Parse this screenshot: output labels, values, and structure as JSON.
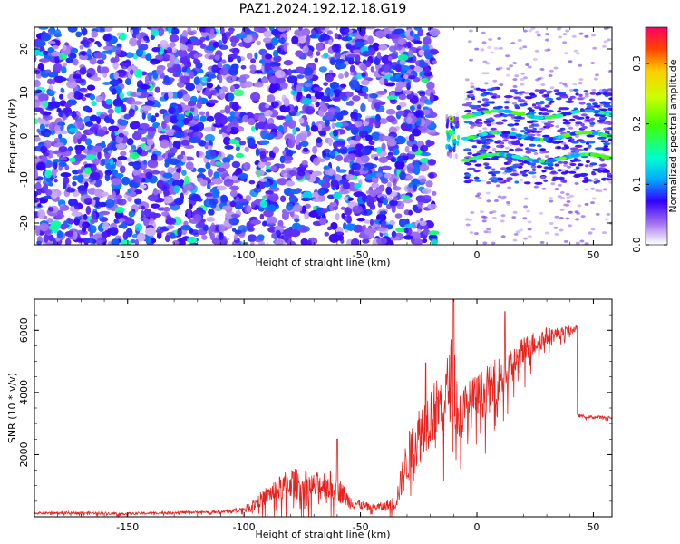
{
  "title": "PAZ1.2024.192.12.18.G19",
  "chart_data": [
    {
      "type": "heatmap",
      "xlabel": "Height of straight line (km)",
      "ylabel": "Frequency (Hz)",
      "xlim": [
        -190,
        58
      ],
      "ylim": [
        -25,
        25
      ],
      "xticks": [
        "-150",
        "-100",
        "-50",
        "0",
        "50"
      ],
      "xtick_values": [
        -150,
        -100,
        -50,
        0,
        50
      ],
      "yticks": [
        "-20",
        "-10",
        "0",
        "10",
        "20"
      ],
      "ytick_values": [
        -20,
        -10,
        0,
        10,
        20
      ],
      "colorbar": {
        "label": "Normalized spectral amplitude",
        "range": [
          0,
          0.36
        ],
        "ticks": [
          "0.0",
          "0.1",
          "0.2",
          "0.3"
        ],
        "tick_values": [
          0.0,
          0.1,
          0.2,
          0.3
        ]
      },
      "regions": [
        {
          "x_from": -190,
          "x_to": -18,
          "pattern": "noise",
          "amplitude": 0.05
        },
        {
          "x_from": -13,
          "x_to": -8,
          "pattern": "carrier",
          "amplitude": 0.36
        },
        {
          "x_from": -5,
          "x_to": 58,
          "pattern": "bands",
          "amplitude": 0.18
        }
      ],
      "bands_hz": [
        -5,
        0,
        5
      ]
    },
    {
      "type": "line",
      "xlabel": "Height of straight line (km)",
      "ylabel": "SNR (10 * v/v)",
      "xlim": [
        -190,
        58
      ],
      "ylim": [
        0,
        7000
      ],
      "xticks": [
        "-150",
        "-100",
        "-50",
        "0",
        "50"
      ],
      "xtick_values": [
        -150,
        -100,
        -50,
        0,
        50
      ],
      "yticks": [
        "2000",
        "4000",
        "6000"
      ],
      "ytick_values": [
        2000,
        4000,
        6000
      ],
      "series": [
        {
          "color": "#e8231f",
          "x": [
            -190,
            -170,
            -150,
            -130,
            -110,
            -100,
            -95,
            -90,
            -85,
            -80,
            -75,
            -70,
            -65,
            -60,
            -55,
            -50,
            -45,
            -40,
            -35,
            -30,
            -25,
            -20,
            -15,
            -12,
            -10,
            -8,
            -5,
            0,
            5,
            10,
            15,
            20,
            25,
            30,
            35,
            40,
            43,
            44,
            50,
            58
          ],
          "y": [
            120,
            130,
            100,
            140,
            160,
            250,
            450,
            700,
            900,
            1100,
            1000,
            950,
            1050,
            950,
            500,
            380,
            300,
            330,
            450,
            1800,
            2600,
            3300,
            3600,
            4200,
            4800,
            3100,
            3500,
            3800,
            4100,
            4500,
            4800,
            5300,
            5600,
            5800,
            5900,
            6000,
            6050,
            3250,
            3200,
            3200
          ],
          "noise": [
            40,
            40,
            40,
            40,
            40,
            80,
            200,
            300,
            400,
            500,
            500,
            450,
            500,
            450,
            250,
            150,
            120,
            150,
            250,
            800,
            1000,
            1000,
            1000,
            1200,
            1500,
            1000,
            800,
            800,
            800,
            700,
            600,
            500,
            400,
            300,
            200,
            150,
            100,
            50,
            50,
            50
          ],
          "spikes": [
            {
              "x": -10,
              "y": 7000
            },
            {
              "x": 12,
              "y": 6600
            },
            {
              "x": -60,
              "y": 2500
            },
            {
              "x": -22,
              "y": 4950
            }
          ]
        }
      ]
    }
  ]
}
